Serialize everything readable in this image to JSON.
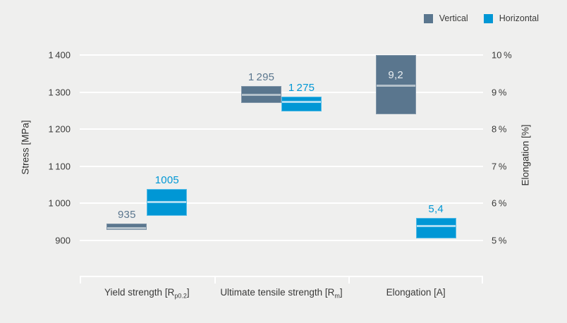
{
  "styles": {
    "background": "#efefee",
    "gridline": "#ffffff",
    "text": "#3a3a39",
    "inside_label_color": "#e9eef1",
    "series_styles": {
      "Vertical": {
        "fill": "#5a768e",
        "border": "#8095a8",
        "mean_line": "#b3c0ca",
        "label_color": "#5a768e"
      },
      "Horizontal": {
        "fill": "#0097d5",
        "border": "#55bce6",
        "mean_line": "#a8dbf2",
        "label_color": "#0097d5"
      }
    }
  },
  "chart_data": {
    "type": "bar",
    "subtype": "floating range bars with mean line",
    "title": "",
    "grid": true,
    "legend_position": "top-right",
    "legend": [
      {
        "name": "Vertical",
        "color": "#5a768e"
      },
      {
        "name": "Horizontal",
        "color": "#0097d5"
      }
    ],
    "axes": {
      "left": {
        "title": "Stress [MPa]",
        "range": [
          900,
          1400
        ],
        "ticks": [
          "1 400",
          "1 300",
          "1 200",
          "1 100",
          "1 000",
          "900"
        ],
        "tick_values": [
          1400,
          1300,
          1200,
          1100,
          1000,
          900
        ]
      },
      "right": {
        "title": "Elongation [%]",
        "range": [
          5,
          10
        ],
        "ticks": [
          "10 %",
          "9 %",
          "8 %",
          "7 %",
          "6 %",
          "5 %"
        ],
        "tick_values": [
          10,
          9,
          8,
          7,
          6,
          5
        ]
      }
    },
    "groups": [
      {
        "category": {
          "text": "Yield strength [R",
          "sub": "p0.2",
          "after": "]"
        },
        "bars": [
          {
            "series": "Vertical",
            "axis": "left",
            "unit": "MPa",
            "low": 928,
            "high": 946,
            "mean": 935,
            "label": "935",
            "label_position": "above"
          },
          {
            "series": "Horizontal",
            "axis": "left",
            "unit": "MPa",
            "low": 966,
            "high": 1038,
            "mean": 1005,
            "label": "1005",
            "label_position": "above"
          }
        ]
      },
      {
        "category": {
          "text": "Ultimate tensile strength [R",
          "sub": "m",
          "after": "]"
        },
        "bars": [
          {
            "series": "Vertical",
            "axis": "left",
            "unit": "MPa",
            "low": 1270,
            "high": 1317,
            "mean": 1295,
            "label": "1 295",
            "label_position": "above"
          },
          {
            "series": "Horizontal",
            "axis": "left",
            "unit": "MPa",
            "low": 1248,
            "high": 1287,
            "mean": 1275,
            "label": "1 275",
            "label_position": "above"
          }
        ]
      },
      {
        "category": {
          "text": "Elongation [A]",
          "sub": "",
          "after": ""
        },
        "bars": [
          {
            "series": "Vertical",
            "axis": "right",
            "unit": "%",
            "low": 8.4,
            "high": 10.0,
            "mean": 9.2,
            "label": "9,2",
            "label_position": "inside"
          },
          {
            "series": "Horizontal",
            "axis": "right",
            "unit": "%",
            "low": 5.05,
            "high": 5.6,
            "mean": 5.4,
            "label": "5,4",
            "label_position": "above"
          }
        ]
      }
    ]
  }
}
